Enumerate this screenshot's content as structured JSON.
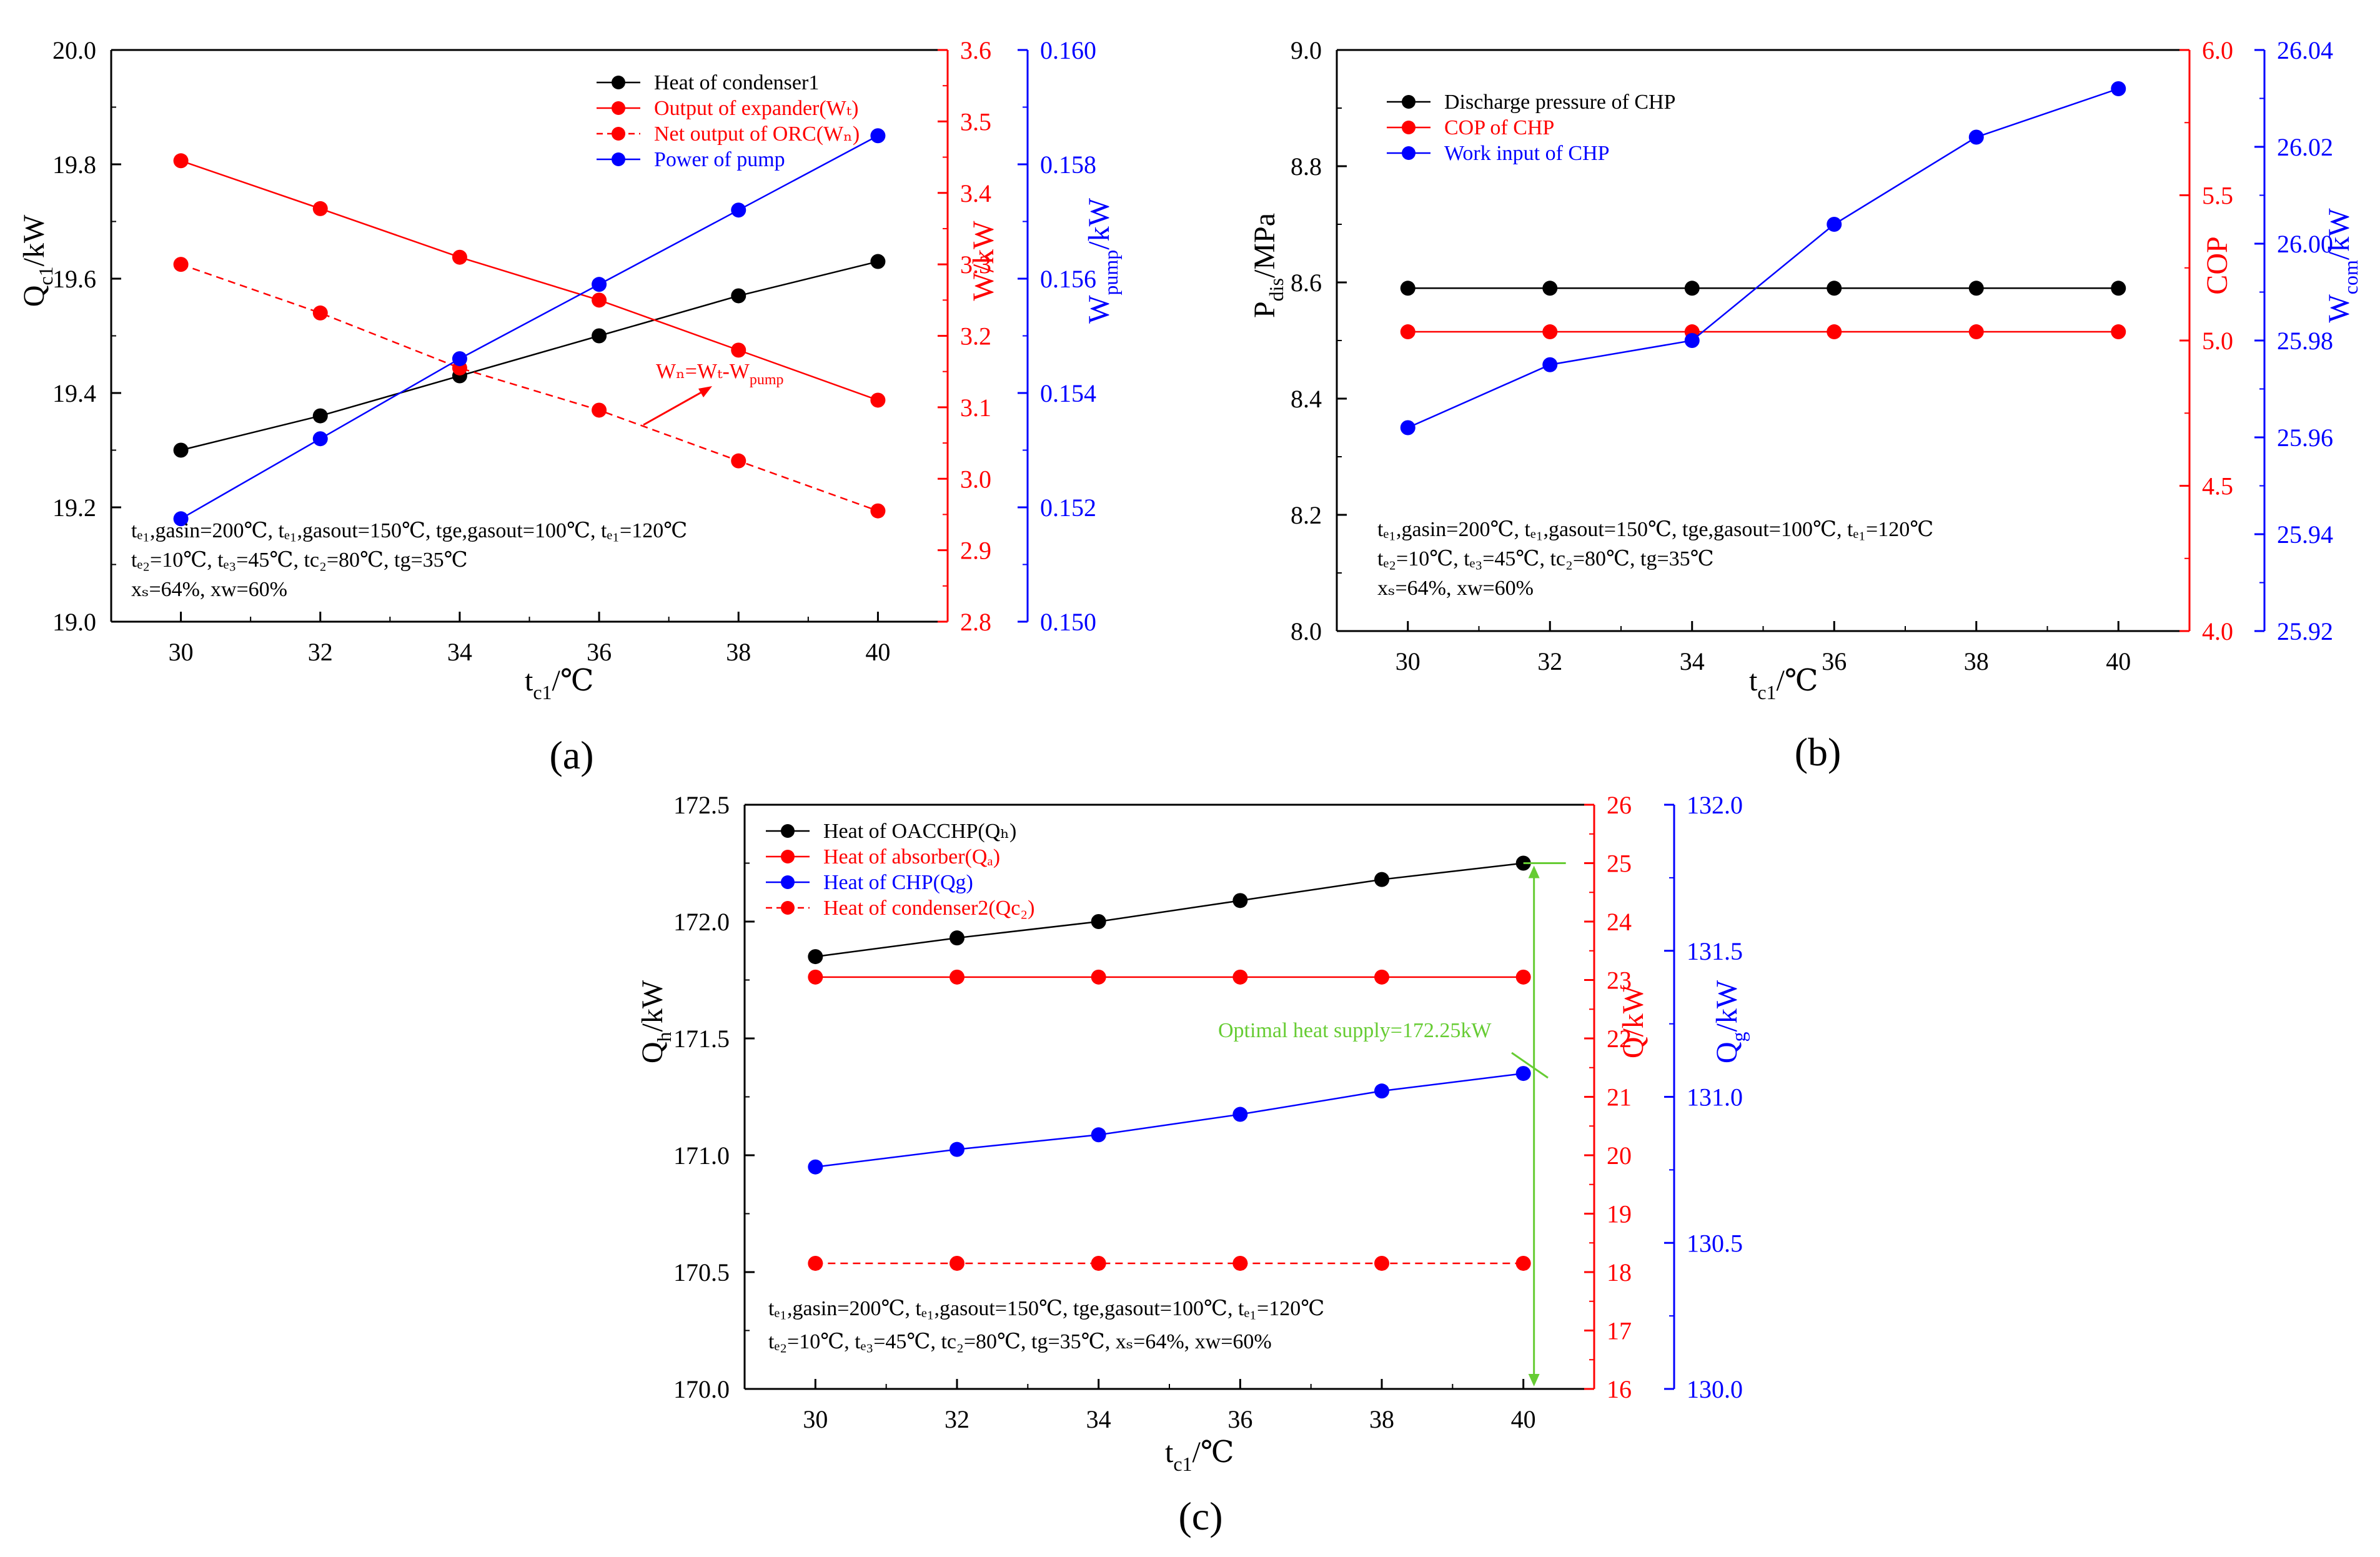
{
  "colors": {
    "black": "#000000",
    "red": "#ff0000",
    "blue": "#0000ff",
    "green": "#66cc33"
  },
  "chart_data": [
    {
      "id": "a",
      "type": "line",
      "panel_label": "(a)",
      "x": [
        30,
        32,
        34,
        36,
        38,
        40
      ],
      "xlim": [
        29,
        41
      ],
      "xticks": [
        "30",
        "32",
        "34",
        "36",
        "38",
        "40"
      ],
      "xlabel": {
        "main": "t",
        "sub": "c1",
        "tail": "/℃"
      },
      "axes": [
        {
          "side": "left",
          "color": "#000000",
          "lim": [
            19.0,
            20.0
          ],
          "ticks": [
            "19.0",
            "19.2",
            "19.4",
            "19.6",
            "19.8",
            "20.0"
          ],
          "label": {
            "main": "Q",
            "sub": "c1",
            "tail": "/kW"
          }
        },
        {
          "side": "right1",
          "color": "#ff0000",
          "lim": [
            2.8,
            3.6
          ],
          "ticks": [
            "2.8",
            "2.9",
            "3.0",
            "3.1",
            "3.2",
            "3.3",
            "3.4",
            "3.5",
            "3.6"
          ],
          "label": {
            "main": "W/kW",
            "sub": "",
            "tail": ""
          }
        },
        {
          "side": "right2",
          "color": "#0000ff",
          "lim": [
            0.15,
            0.16
          ],
          "ticks": [
            "0.150",
            "0.152",
            "0.154",
            "0.156",
            "0.158",
            "0.160"
          ],
          "label": {
            "main": "W",
            "sub": "pump",
            "tail": "/kW"
          }
        }
      ],
      "series": [
        {
          "name": "Heat of condenser1",
          "axis": 0,
          "color": "#000000",
          "dash": false,
          "values": [
            19.3,
            19.36,
            19.43,
            19.5,
            19.57,
            19.63
          ]
        },
        {
          "name": "Output of expander(Wₜ)",
          "axis": 1,
          "color": "#ff0000",
          "dash": false,
          "values": [
            3.445,
            3.378,
            3.31,
            3.25,
            3.18,
            3.11
          ]
        },
        {
          "name": "Net output of ORC(Wₙ)",
          "axis": 1,
          "color": "#ff0000",
          "dash": true,
          "values": [
            3.3,
            3.232,
            3.155,
            3.096,
            3.025,
            2.955
          ]
        },
        {
          "name": "Power of pump",
          "axis": 2,
          "color": "#0000ff",
          "dash": false,
          "values": [
            0.1518,
            0.1532,
            0.1546,
            0.1559,
            0.1572,
            0.1585
          ]
        }
      ],
      "annotation": "Wₙ=Wₜ-W",
      "annotation_sub": "pump",
      "conditions": [
        "tₑ₁,gasin=200℃,  tₑ₁,gasout=150℃,  tge,gasout=100℃,  tₑ₁=120℃",
        "tₑ₂=10℃,  tₑ₃=45℃,  tc₂=80℃,  tg=35℃",
        "xₛ=64%,  xw=60%"
      ]
    },
    {
      "id": "b",
      "type": "line",
      "panel_label": "(b)",
      "x": [
        30,
        32,
        34,
        36,
        38,
        40
      ],
      "xlim": [
        29,
        41
      ],
      "xticks": [
        "30",
        "32",
        "34",
        "36",
        "38",
        "40"
      ],
      "xlabel": {
        "main": "t",
        "sub": "c1",
        "tail": "/℃"
      },
      "axes": [
        {
          "side": "left",
          "color": "#000000",
          "lim": [
            8.0,
            9.0
          ],
          "ticks": [
            "8.0",
            "8.2",
            "8.4",
            "8.6",
            "8.8",
            "9.0"
          ],
          "label": {
            "main": "P",
            "sub": "dis",
            "tail": "/MPa"
          }
        },
        {
          "side": "right1",
          "color": "#ff0000",
          "lim": [
            4.0,
            6.0
          ],
          "ticks": [
            "4.0",
            "4.5",
            "5.0",
            "5.5",
            "6.0"
          ],
          "label": {
            "main": "COP",
            "sub": "",
            "tail": ""
          }
        },
        {
          "side": "right2",
          "color": "#0000ff",
          "lim": [
            25.92,
            26.04
          ],
          "ticks": [
            "25.92",
            "25.94",
            "25.96",
            "25.98",
            "26.00",
            "26.02",
            "26.04"
          ],
          "label": {
            "main": "W",
            "sub": "com",
            "tail": "/kW"
          }
        }
      ],
      "series": [
        {
          "name": "Discharge pressure of CHP",
          "axis": 0,
          "color": "#000000",
          "dash": false,
          "values": [
            8.59,
            8.59,
            8.59,
            8.59,
            8.59,
            8.59
          ]
        },
        {
          "name": "COP of CHP",
          "axis": 1,
          "color": "#ff0000",
          "dash": false,
          "values": [
            5.03,
            5.03,
            5.03,
            5.03,
            5.03,
            5.03
          ]
        },
        {
          "name": "Work input of CHP",
          "axis": 2,
          "color": "#0000ff",
          "dash": false,
          "values": [
            25.962,
            25.975,
            25.98,
            26.004,
            26.022,
            26.032
          ]
        }
      ],
      "conditions": [
        "tₑ₁,gasin=200℃,  tₑ₁,gasout=150℃,  tge,gasout=100℃,  tₑ₁=120℃",
        "tₑ₂=10℃,  tₑ₃=45℃,  tc₂=80℃,  tg=35℃",
        "xₛ=64%,  xw=60%"
      ]
    },
    {
      "id": "c",
      "type": "line",
      "panel_label": "(c)",
      "x": [
        30,
        32,
        34,
        36,
        38,
        40
      ],
      "xlim": [
        29,
        41
      ],
      "xticks": [
        "30",
        "32",
        "34",
        "36",
        "38",
        "40"
      ],
      "xlabel": {
        "main": "t",
        "sub": "c1",
        "tail": "/℃"
      },
      "axes": [
        {
          "side": "left",
          "color": "#000000",
          "lim": [
            170.0,
            172.5
          ],
          "ticks": [
            "170.0",
            "170.5",
            "171.0",
            "171.5",
            "172.0",
            "172.5"
          ],
          "label": {
            "main": "Q",
            "sub": "h",
            "tail": "/kW"
          }
        },
        {
          "side": "right1",
          "color": "#ff0000",
          "lim": [
            16,
            26
          ],
          "ticks": [
            "16",
            "17",
            "18",
            "19",
            "20",
            "21",
            "22",
            "23",
            "24",
            "25",
            "26"
          ],
          "label": {
            "main": "Q/kW",
            "sub": "",
            "tail": ""
          }
        },
        {
          "side": "right2",
          "color": "#0000ff",
          "lim": [
            130.0,
            132.0
          ],
          "ticks": [
            "130.0",
            "130.5",
            "131.0",
            "131.5",
            "132.0"
          ],
          "label": {
            "main": "Q",
            "sub": "g",
            "tail": "/kW"
          }
        }
      ],
      "series": [
        {
          "name": "Heat of OACCHP(Qₕ)",
          "axis": 0,
          "color": "#000000",
          "dash": false,
          "values": [
            171.85,
            171.93,
            172.0,
            172.09,
            172.18,
            172.25
          ]
        },
        {
          "name": "Heat of absorber(Qₐ)",
          "axis": 1,
          "color": "#ff0000",
          "dash": false,
          "values": [
            23.05,
            23.05,
            23.05,
            23.05,
            23.05,
            23.05
          ]
        },
        {
          "name": "Heat of CHP(Qg)",
          "axis": 2,
          "color": "#0000ff",
          "dash": false,
          "values": [
            130.76,
            130.82,
            130.87,
            130.94,
            131.02,
            131.08
          ]
        },
        {
          "name": "Heat of condenser2(Qc₂)",
          "axis": 1,
          "color": "#ff0000",
          "dash": true,
          "values": [
            18.15,
            18.15,
            18.15,
            18.15,
            18.15,
            18.15
          ]
        }
      ],
      "annotation": "Optimal heat supply=172.25kW",
      "conditions": [
        "tₑ₁,gasin=200℃,  tₑ₁,gasout=150℃,  tge,gasout=100℃,  tₑ₁=120℃",
        "tₑ₂=10℃,  tₑ₃=45℃,  tc₂=80℃,  tg=35℃,  xₛ=64%,  xw=60%"
      ]
    }
  ]
}
